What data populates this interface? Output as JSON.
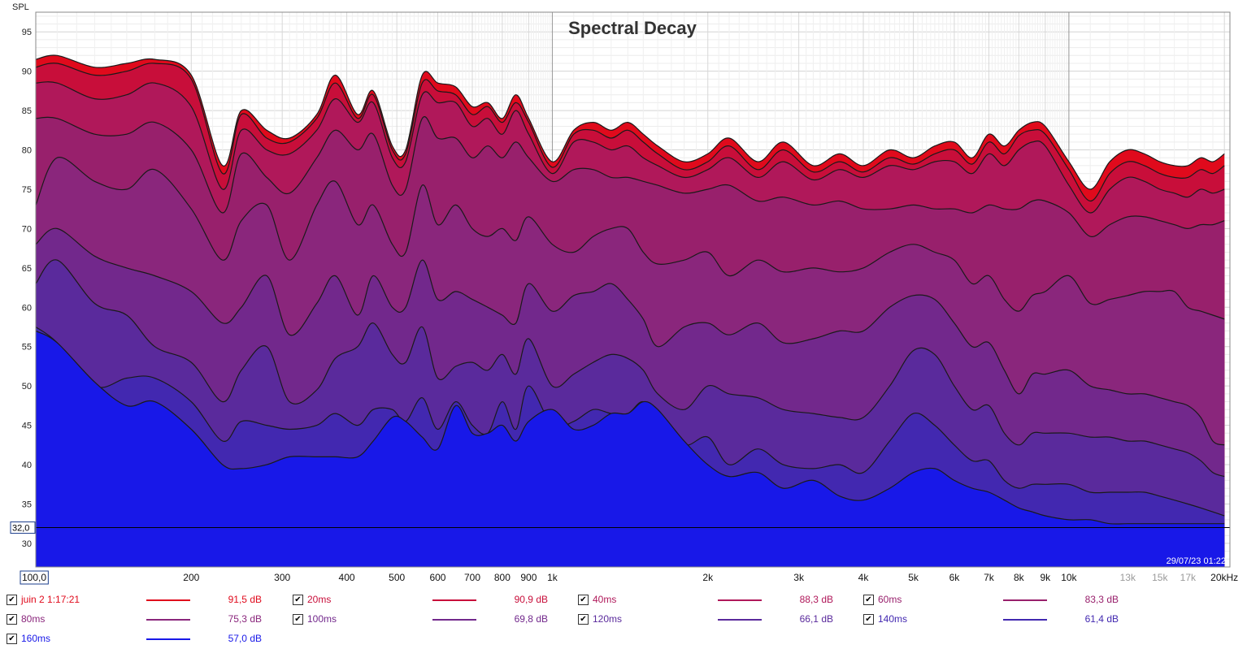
{
  "chart_data": {
    "type": "area",
    "title": "Spectral Decay",
    "ylabel": "SPL",
    "ylim": [
      27,
      97.5
    ],
    "xlim": [
      100,
      20500
    ],
    "xscale": "log",
    "grid": true,
    "legend_position": "bottom",
    "y_ticks": [
      "95",
      "90",
      "85",
      "80",
      "75",
      "70",
      "65",
      "60",
      "55",
      "50",
      "45",
      "40",
      "35",
      "30"
    ],
    "y_cursor_label": "32,0",
    "y_cursor_value": 32,
    "x_ticks": [
      {
        "label": "100,0",
        "value": 100,
        "minor": false
      },
      {
        "label": "200",
        "value": 200,
        "minor": false
      },
      {
        "label": "300",
        "value": 300,
        "minor": false
      },
      {
        "label": "400",
        "value": 400,
        "minor": false
      },
      {
        "label": "500",
        "value": 500,
        "minor": false
      },
      {
        "label": "600",
        "value": 600,
        "minor": false
      },
      {
        "label": "700",
        "value": 700,
        "minor": false
      },
      {
        "label": "800",
        "value": 800,
        "minor": false
      },
      {
        "label": "900",
        "value": 900,
        "minor": false
      },
      {
        "label": "1k",
        "value": 1000,
        "minor": false
      },
      {
        "label": "2k",
        "value": 2000,
        "minor": false
      },
      {
        "label": "3k",
        "value": 3000,
        "minor": false
      },
      {
        "label": "4k",
        "value": 4000,
        "minor": false
      },
      {
        "label": "5k",
        "value": 5000,
        "minor": false
      },
      {
        "label": "6k",
        "value": 6000,
        "minor": false
      },
      {
        "label": "7k",
        "value": 7000,
        "minor": false
      },
      {
        "label": "8k",
        "value": 8000,
        "minor": false
      },
      {
        "label": "9k",
        "value": 9000,
        "minor": false
      },
      {
        "label": "10k",
        "value": 10000,
        "minor": false
      },
      {
        "label": "13k",
        "value": 13000,
        "minor": true
      },
      {
        "label": "15k",
        "value": 15000,
        "minor": true
      },
      {
        "label": "17k",
        "value": 17000,
        "minor": true
      },
      {
        "label": "20kHz",
        "value": 20000,
        "minor": false
      }
    ],
    "timestamp": "29/07/23 01:22",
    "x": [
      100,
      110,
      130,
      150,
      170,
      200,
      230,
      250,
      280,
      310,
      350,
      380,
      420,
      450,
      490,
      520,
      560,
      600,
      650,
      700,
      750,
      800,
      850,
      900,
      1000,
      1100,
      1200,
      1300,
      1400,
      1500,
      1600,
      1800,
      2000,
      2200,
      2500,
      2800,
      3200,
      3600,
      4000,
      4500,
      5000,
      5500,
      6000,
      6500,
      7000,
      7500,
      8000,
      8500,
      9000,
      10000,
      11000,
      12000,
      13000,
      14000,
      15000,
      16000,
      17000,
      18000,
      19000,
      20000
    ],
    "series": [
      {
        "name": "juin 2 1:17:21",
        "color": "#e00a1c",
        "legend_value": "91,5 dB",
        "values": [
          91.5,
          92,
          90.5,
          91,
          91.5,
          89.5,
          78,
          85,
          82.5,
          81.5,
          84.5,
          89.5,
          84.5,
          87.5,
          80.5,
          80,
          89.5,
          88.5,
          88,
          85.5,
          86,
          84,
          87,
          84,
          78.5,
          82.5,
          83.5,
          82.5,
          83.5,
          82,
          80.5,
          78.5,
          79.5,
          81.5,
          78.5,
          81,
          78,
          79.5,
          78,
          80,
          79,
          80.5,
          81,
          79,
          82,
          80.5,
          82.5,
          83.5,
          83,
          78.5,
          75,
          78.5,
          80,
          79.5,
          78.5,
          78,
          78,
          79,
          78.5,
          79.5
        ]
      },
      {
        "name": "20ms",
        "color": "#c80e3a",
        "legend_value": "90,9 dB",
        "values": [
          90.5,
          91,
          89.5,
          90,
          91,
          89,
          77,
          84.5,
          81.5,
          81,
          84,
          88.5,
          84,
          87,
          80,
          79.5,
          88.5,
          87.5,
          87,
          84.5,
          85.5,
          83.5,
          86,
          83.5,
          77.8,
          82,
          82.5,
          81.5,
          82.5,
          81,
          79.5,
          77.5,
          78.5,
          80.5,
          77.5,
          80,
          77.2,
          78.5,
          77.2,
          79,
          78.2,
          79.5,
          80,
          78.2,
          81,
          79.5,
          81.8,
          82.5,
          82,
          77.5,
          73.5,
          77,
          78.5,
          78,
          77,
          76.5,
          76.5,
          77.5,
          77,
          78
        ]
      },
      {
        "name": "40ms",
        "color": "#b0185a",
        "legend_value": "88,3 dB",
        "values": [
          88.5,
          88.5,
          86.5,
          87,
          88.5,
          85.5,
          75,
          82.5,
          80,
          79.5,
          82.5,
          86.5,
          83.5,
          86,
          79,
          78.5,
          87,
          86,
          86,
          83,
          84,
          82,
          85,
          82,
          77,
          81,
          81,
          80,
          80.5,
          79,
          78,
          76.5,
          77.5,
          79,
          76.5,
          78.5,
          76.2,
          77.5,
          76.5,
          78,
          77.5,
          78.5,
          78.5,
          77,
          79.5,
          78,
          80,
          81,
          80.5,
          75.5,
          72,
          75,
          76.5,
          76,
          75,
          74.5,
          74,
          75,
          74.5,
          75
        ]
      },
      {
        "name": "60ms",
        "color": "#98206c",
        "legend_value": "83,3 dB",
        "values": [
          84,
          84,
          82,
          82,
          83.5,
          80,
          72,
          79.5,
          76.5,
          74.5,
          79,
          82.5,
          80,
          82,
          75.5,
          75,
          84,
          81.5,
          81.5,
          79,
          80.5,
          79,
          81,
          79,
          76,
          77.5,
          77.5,
          76.5,
          76.5,
          76,
          75.5,
          74.5,
          75,
          75.5,
          73.5,
          74,
          73,
          73.5,
          72.5,
          72.5,
          73,
          72.5,
          72.5,
          72,
          73,
          72.5,
          72.5,
          73.5,
          73.5,
          72,
          69,
          70.5,
          71.5,
          71.5,
          71,
          70.5,
          70,
          70.5,
          70.5,
          71
        ]
      },
      {
        "name": "80ms",
        "color": "#8a267c",
        "legend_value": "75,3 dB",
        "values": [
          73,
          79,
          76,
          75,
          77.5,
          72.5,
          66,
          71,
          73,
          66,
          73,
          76,
          70.5,
          73,
          68,
          67,
          75.5,
          70.5,
          73,
          70,
          69,
          70,
          68.5,
          71.5,
          68,
          67,
          69,
          70,
          70,
          67,
          65.5,
          66,
          67,
          64,
          66,
          64.5,
          65,
          64.5,
          65,
          67,
          68,
          67,
          66,
          63,
          64,
          61,
          59.5,
          61.5,
          62,
          64,
          60.5,
          61,
          61.5,
          62,
          62,
          62,
          60,
          59.5,
          59,
          58.5
        ]
      },
      {
        "name": "100ms",
        "color": "#72288c",
        "legend_value": "69,8 dB",
        "values": [
          68,
          70,
          66.5,
          65,
          64,
          62,
          58,
          60,
          64,
          56.5,
          60.5,
          64,
          59,
          64,
          60,
          60,
          66,
          61,
          62,
          61,
          60,
          59,
          58,
          63,
          59.5,
          61.5,
          62,
          63,
          61,
          58.5,
          55,
          57.5,
          58,
          56.5,
          58,
          55.5,
          56,
          57,
          57,
          60,
          61.5,
          61,
          58,
          55,
          55.5,
          52,
          49,
          51.5,
          51.5,
          52,
          50,
          49.5,
          49,
          49,
          48.5,
          48,
          47.5,
          46,
          43,
          42.5
        ]
      },
      {
        "name": "120ms",
        "color": "#5a2a9c",
        "legend_value": "66,1 dB",
        "values": [
          63,
          66,
          60.5,
          59,
          55,
          53,
          48,
          52,
          55,
          48,
          49.5,
          53.5,
          55,
          58,
          54,
          53,
          57.5,
          51,
          52.5,
          53,
          52,
          54,
          51.5,
          56,
          50,
          51.5,
          53,
          54,
          53.5,
          52,
          49,
          47,
          50,
          49,
          48.5,
          47,
          46.5,
          46,
          46,
          50,
          54.5,
          54,
          50,
          47,
          47.5,
          44,
          42.5,
          44,
          44,
          44,
          43.5,
          43.5,
          43,
          43,
          42.5,
          42,
          41.5,
          40.5,
          39,
          38.5
        ]
      },
      {
        "name": "140ms",
        "color": "#4228b0",
        "legend_value": "61,4 dB",
        "values": [
          57.5,
          55.5,
          50,
          51,
          51,
          48,
          43,
          45.5,
          45,
          44.5,
          45,
          46.5,
          45,
          47,
          47,
          45.5,
          48.5,
          44.5,
          48,
          45,
          44,
          48,
          44.5,
          50,
          45,
          45.5,
          47,
          46.5,
          46.5,
          48,
          45.5,
          42.5,
          43.5,
          40,
          42,
          40,
          39.5,
          40,
          39,
          43,
          46.5,
          45,
          42.5,
          40.5,
          40.5,
          38,
          37,
          37.5,
          37.5,
          37.5,
          36.5,
          36.5,
          36.5,
          36.5,
          36,
          35.5,
          35,
          34.5,
          34,
          33.5
        ]
      },
      {
        "name": "160ms",
        "color": "#1818e8",
        "legend_value": "57,0 dB",
        "values": [
          57,
          55.5,
          50.5,
          47.5,
          48,
          44.5,
          40,
          39.5,
          40,
          41,
          41,
          41,
          41,
          43,
          46,
          45.5,
          43.5,
          42,
          47.5,
          44,
          44,
          45,
          43,
          45.5,
          47,
          44.5,
          45,
          46.5,
          46.5,
          48,
          47,
          43,
          40,
          38.5,
          39,
          37,
          38,
          36,
          35.5,
          37,
          39,
          39.5,
          38,
          37,
          36.5,
          35.5,
          34.5,
          34,
          33.5,
          33,
          33,
          32.5,
          32.5,
          32.5,
          32.5,
          32.5,
          32.5,
          32.5,
          32.5,
          32.5
        ]
      }
    ]
  }
}
